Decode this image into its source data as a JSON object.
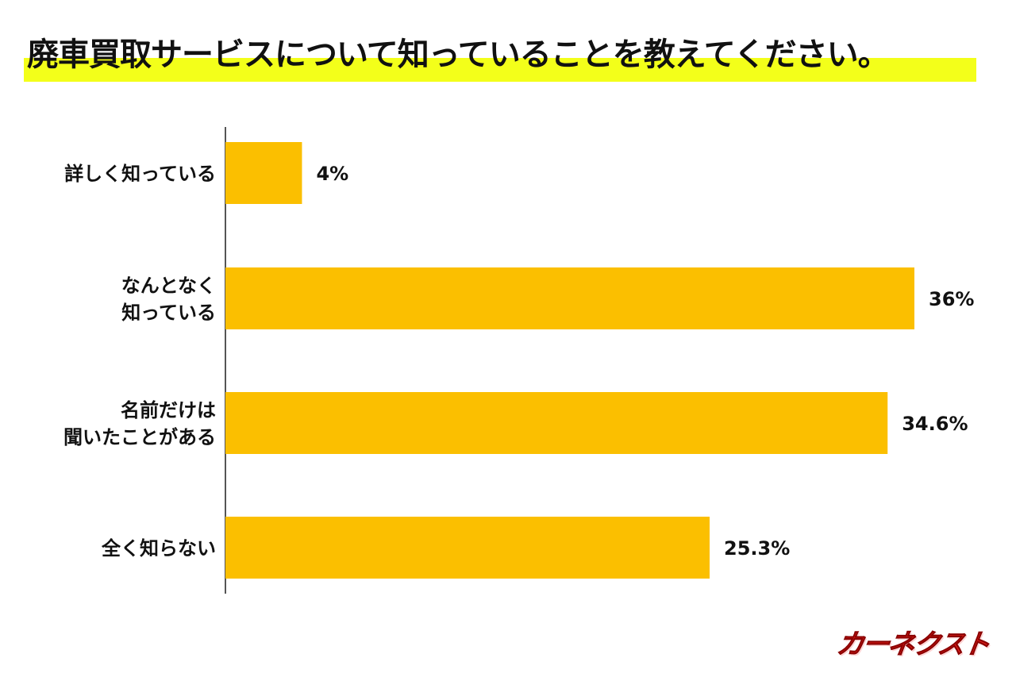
{
  "chart_data": {
    "type": "bar",
    "orientation": "horizontal",
    "title": "廃車買取サービスについて知っていることを教えてください。",
    "categories": [
      [
        "詳しく知っている"
      ],
      [
        "なんとなく",
        "知っている"
      ],
      [
        "名前だけは",
        "聞いたことがある"
      ],
      [
        "全く知らない"
      ]
    ],
    "values": [
      4,
      36,
      34.6,
      25.3
    ],
    "data_labels": [
      "4%",
      "36%",
      "34.6%",
      "25.3%"
    ],
    "unit": "%",
    "xlim": [
      0,
      36
    ],
    "grid": false,
    "colors": {
      "bar": "#fbbf00",
      "title_highlight": "#f3ff1a",
      "axis": "#555555"
    }
  },
  "logo": "カーネクスト"
}
